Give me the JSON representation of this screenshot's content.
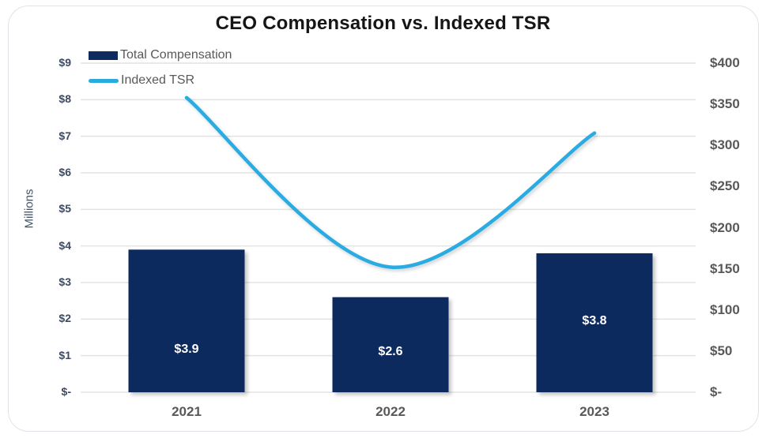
{
  "title": "CEO Compensation vs. Indexed TSR",
  "legend": [
    {
      "label": "Total Compensation",
      "swatch": "bar-swatch"
    },
    {
      "label": "Indexed TSR",
      "swatch": "line-swatch"
    }
  ],
  "left_axis": {
    "label": "Millions",
    "ticks": [
      "$9",
      "$8",
      "$7",
      "$6",
      "$5",
      "$4",
      "$3",
      "$2",
      "$1",
      "$-"
    ]
  },
  "right_axis": {
    "ticks": [
      "$400",
      "$350",
      "$300",
      "$250",
      "$200",
      "$150",
      "$100",
      "$50",
      "$-"
    ]
  },
  "x_axis": {
    "categories": [
      "2021",
      "2022",
      "2023"
    ]
  },
  "bar_labels": [
    "$3.9",
    "$2.6",
    "$3.8"
  ],
  "colors": {
    "bar": "#0e2a5e",
    "line": "#29abe2",
    "grid": "#e3e3e3",
    "left_tick_text": "#3d4a63",
    "gray_text": "#595959",
    "title_text": "#161616",
    "card_border": "#dfe3e9",
    "bar_label_text": "#ffffff"
  },
  "chart_data": {
    "type": "bar",
    "subtype": "combo bar + smooth line, dual axis",
    "title": "CEO Compensation vs. Indexed TSR",
    "categories": [
      "2021",
      "2022",
      "2023"
    ],
    "series": [
      {
        "name": "Total Compensation",
        "type": "bar",
        "axis": "left",
        "values": [
          3.9,
          2.6,
          3.8
        ],
        "data_labels": [
          "$3.9",
          "$2.6",
          "$3.8"
        ],
        "color": "#0e2a5e"
      },
      {
        "name": "Indexed TSR",
        "type": "line",
        "axis": "right",
        "values": [
          358,
          152,
          315
        ],
        "color": "#29abe2"
      }
    ],
    "left_axis_label": "Millions",
    "left_ylim": [
      0,
      9
    ],
    "left_tick_step": 1,
    "right_ylim": [
      0,
      400
    ],
    "right_tick_step": 50,
    "grid": true,
    "legend_position": "top-left"
  }
}
